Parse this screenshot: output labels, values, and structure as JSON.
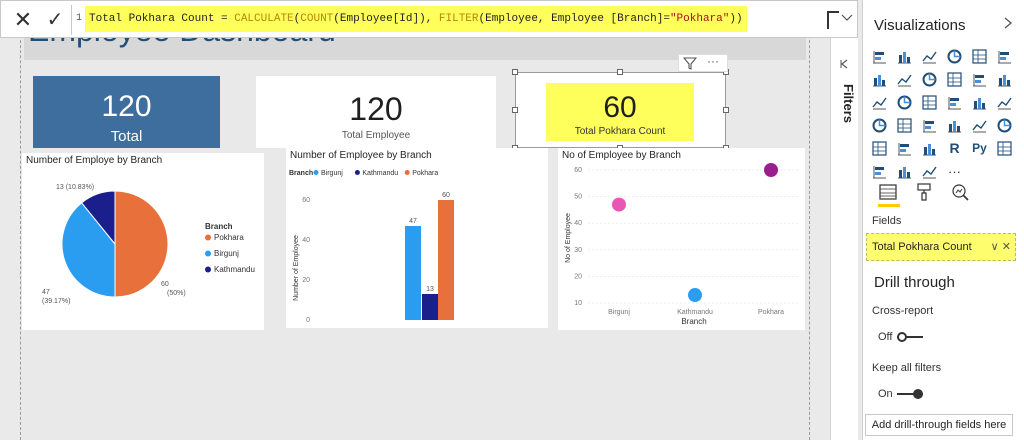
{
  "formula_bar": {
    "line_number": "1",
    "parts": [
      {
        "text": "Total Pokhara Count = ",
        "cls": ""
      },
      {
        "text": "CALCULATE",
        "cls": "fn"
      },
      {
        "text": "(",
        "cls": ""
      },
      {
        "text": "COUNT",
        "cls": "fn"
      },
      {
        "text": "(Employee[Id]), ",
        "cls": ""
      },
      {
        "text": "FILTER",
        "cls": "fn"
      },
      {
        "text": "(Employee, Employee [Branch]=",
        "cls": ""
      },
      {
        "text": "\"Pokhara\"",
        "cls": "str"
      },
      {
        "text": "))",
        "cls": ""
      }
    ]
  },
  "page": {
    "title": "Employee Dashboard"
  },
  "cards": {
    "total": {
      "value": "120",
      "label": "Total"
    },
    "total_employee": {
      "value": "120",
      "label": "Total Employee"
    },
    "pokhara": {
      "value": "60",
      "label": "Total Pokhara Count"
    }
  },
  "colors": {
    "pokhara": "#e8703a",
    "birgunj": "#2b9df0",
    "kathmandu": "#1a1f8c",
    "scatter_birgunj": "#e957b5",
    "scatter_kathmandu": "#2b9df0",
    "scatter_pokhara": "#9c1d8e"
  },
  "chart_data": [
    {
      "type": "pie",
      "title": "Number of Employe by Branch",
      "legend_title": "Branch",
      "legend": [
        "Pokhara",
        "Birgunj",
        "Kathmandu"
      ],
      "slices": [
        {
          "name": "Pokhara",
          "value": 60,
          "label": "60",
          "pct": "(50%)"
        },
        {
          "name": "Birgunj",
          "value": 47,
          "label": "47",
          "pct": "(39.17%)"
        },
        {
          "name": "Kathmandu",
          "value": 13,
          "label": "13 (10.83%)",
          "pct": ""
        }
      ]
    },
    {
      "type": "bar",
      "title": "Number of Employee by Branch",
      "legend_title": "Branch",
      "legend": [
        "Birgunj",
        "Kathmandu",
        "Pokhara"
      ],
      "ylabel": "Number of Employee",
      "yticks": [
        "60",
        "40",
        "20",
        "0"
      ],
      "ylim": [
        0,
        60
      ],
      "series": [
        {
          "name": "Birgunj",
          "values": [
            47
          ],
          "label": "47"
        },
        {
          "name": "Kathmandu",
          "values": [
            13
          ],
          "label": "13"
        },
        {
          "name": "Pokhara",
          "values": [
            60
          ],
          "label": "60"
        }
      ]
    },
    {
      "type": "scatter",
      "title": "No of Employee by Branch",
      "xlabel": "Branch",
      "ylabel": "No of Employee",
      "categories": [
        "Birgunj",
        "Kathmandu",
        "Pokhara"
      ],
      "values": [
        47,
        13,
        60
      ],
      "yticks": [
        "60",
        "50",
        "40",
        "30",
        "20",
        "10"
      ],
      "ylim": [
        10,
        60
      ]
    }
  ],
  "filters": {
    "label": "Filters"
  },
  "viz_pane": {
    "title": "Visualizations",
    "fields_label": "Fields",
    "field_value": "Total Pokhara Count",
    "drill_title": "Drill through",
    "cross_report_label": "Cross-report",
    "cross_report_state": "Off",
    "keep_filters_label": "Keep all filters",
    "keep_filters_state": "On",
    "add_button": "Add drill-through fields here",
    "r_icon": "R",
    "py_icon": "Py",
    "more_icon": "···"
  }
}
